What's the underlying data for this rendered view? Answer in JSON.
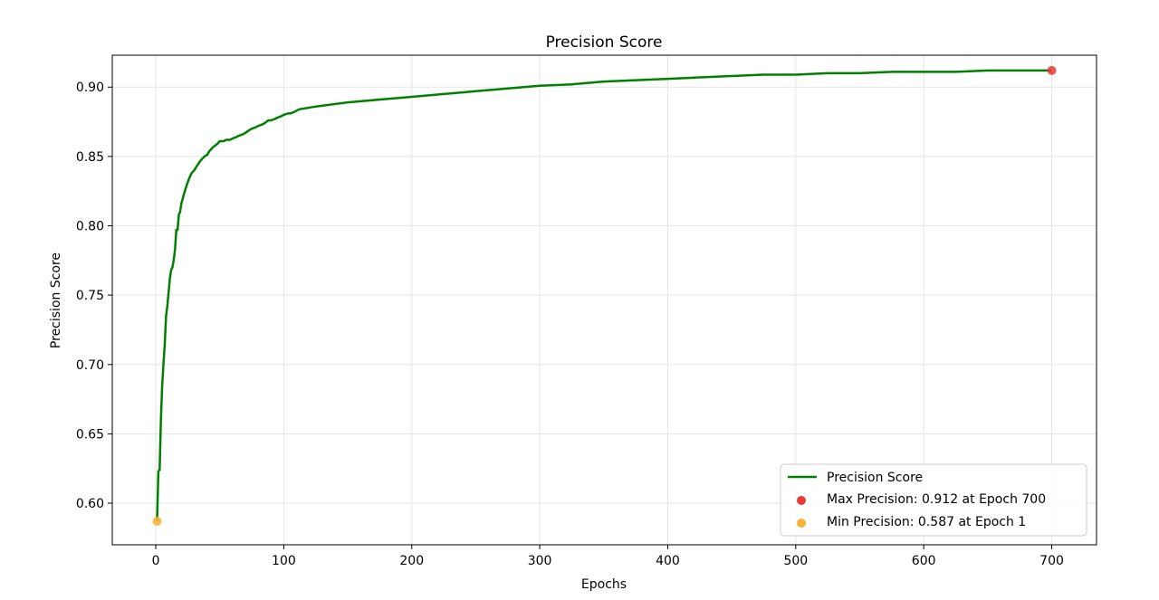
{
  "chart_data": {
    "type": "line",
    "title": "Precision Score",
    "xlabel": "Epochs",
    "ylabel": "Precision Score",
    "xlim": [
      -34,
      735
    ],
    "ylim": [
      0.57,
      0.923
    ],
    "x_ticks": [
      0,
      100,
      200,
      300,
      400,
      500,
      600,
      700
    ],
    "y_ticks": [
      0.6,
      0.65,
      0.7,
      0.75,
      0.8,
      0.85,
      0.9
    ],
    "grid": true,
    "legend_position": "lower-right",
    "series": [
      {
        "name": "Precision Score",
        "color": "#008000",
        "x": [
          1,
          2,
          3,
          4,
          5,
          6,
          7,
          8,
          9,
          10,
          11,
          12,
          13,
          14,
          15,
          16,
          17,
          18,
          19,
          20,
          22,
          24,
          26,
          28,
          30,
          32,
          35,
          38,
          40,
          42,
          45,
          48,
          50,
          53,
          55,
          58,
          60,
          63,
          65,
          68,
          70,
          73,
          75,
          78,
          80,
          83,
          85,
          88,
          90,
          93,
          95,
          98,
          100,
          103,
          105,
          108,
          110,
          112,
          125,
          150,
          175,
          200,
          225,
          250,
          275,
          300,
          325,
          350,
          375,
          400,
          425,
          450,
          475,
          500,
          525,
          550,
          575,
          600,
          625,
          650,
          675,
          700
        ],
        "y": [
          0.587,
          0.623,
          0.624,
          0.66,
          0.685,
          0.7,
          0.715,
          0.735,
          0.742,
          0.752,
          0.762,
          0.768,
          0.77,
          0.775,
          0.783,
          0.797,
          0.797,
          0.808,
          0.81,
          0.816,
          0.823,
          0.829,
          0.834,
          0.838,
          0.84,
          0.843,
          0.847,
          0.85,
          0.851,
          0.854,
          0.857,
          0.859,
          0.861,
          0.861,
          0.862,
          0.862,
          0.863,
          0.864,
          0.865,
          0.866,
          0.867,
          0.869,
          0.87,
          0.871,
          0.872,
          0.873,
          0.874,
          0.876,
          0.876,
          0.877,
          0.878,
          0.879,
          0.88,
          0.881,
          0.881,
          0.882,
          0.883,
          0.884,
          0.886,
          0.889,
          0.891,
          0.893,
          0.895,
          0.897,
          0.899,
          0.901,
          0.902,
          0.904,
          0.905,
          0.906,
          0.907,
          0.908,
          0.909,
          0.909,
          0.91,
          0.91,
          0.911,
          0.911,
          0.911,
          0.912,
          0.912,
          0.912
        ]
      }
    ],
    "markers": [
      {
        "name": "Max Precision: 0.912 at Epoch 700",
        "x": 700,
        "y": 0.912,
        "color": "#e8383a"
      },
      {
        "name": "Min Precision: 0.587 at Epoch 1",
        "x": 1,
        "y": 0.587,
        "color": "#f9b233"
      }
    ]
  }
}
